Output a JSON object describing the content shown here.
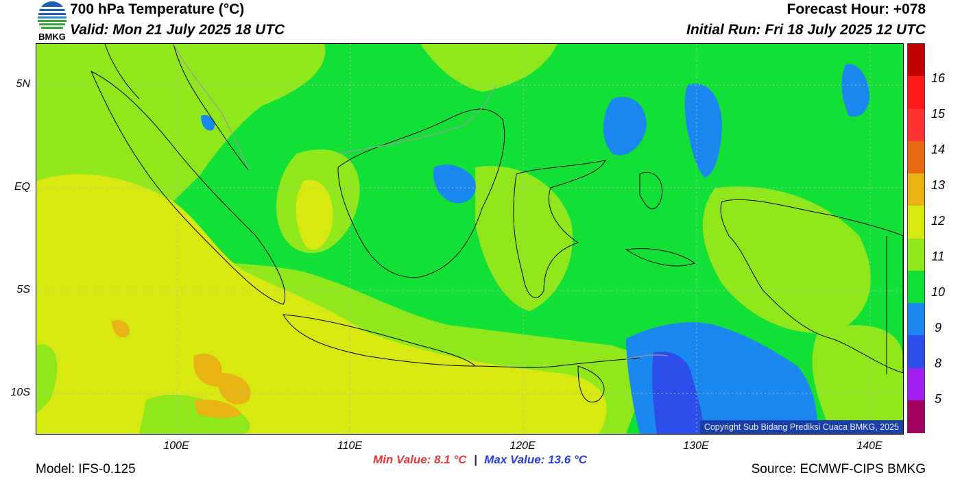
{
  "header": {
    "logo_text": "BMKG",
    "title": "700 hPa Temperature (°C)",
    "valid": "Valid: Mon 21 July 2025 18 UTC",
    "forecast_hour": "Forecast Hour: +078",
    "initial_run": "Initial Run: Fri 18 July 2025 12 UTC"
  },
  "map": {
    "lat_labels": [
      "5N",
      "EQ",
      "5S",
      "10S"
    ],
    "lon_labels": [
      "100E",
      "110E",
      "120E",
      "130E",
      "140E"
    ],
    "copyright": "Copyright Sub Bidang Prediksi Cuaca BMKG, 2025"
  },
  "colorbar": {
    "labels": [
      "16",
      "15",
      "14",
      "13",
      "12",
      "11",
      "10",
      "9",
      "8",
      "5"
    ],
    "colors": [
      "#c00000",
      "#ff1a1a",
      "#ff3333",
      "#e86a12",
      "#e8b414",
      "#d8e811",
      "#90e81c",
      "#12e036",
      "#1a88f0",
      "#2b4fe8",
      "#a020f0",
      "#a00060"
    ]
  },
  "stats": {
    "min": "Min Value: 8.1 °C",
    "separator": "|",
    "max": "Max Value: 13.6 °C"
  },
  "footer": {
    "model": "Model: IFS-0.125",
    "source": "Source: ECMWF-CIPS BMKG"
  }
}
